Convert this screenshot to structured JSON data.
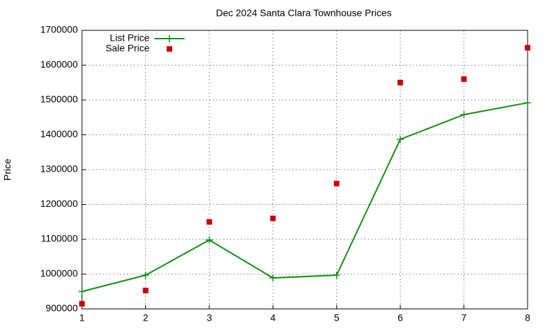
{
  "chart_data": {
    "type": "line",
    "title": "Dec 2024 Santa Clara Townhouse Prices",
    "y_label": "Price",
    "x": [
      1,
      2,
      3,
      4,
      5,
      6,
      7,
      8
    ],
    "xlim": [
      1,
      8
    ],
    "xticks": [
      1,
      2,
      3,
      4,
      5,
      6,
      7,
      8
    ],
    "ylim": [
      900000,
      1700000
    ],
    "yticks": [
      900000,
      1000000,
      1100000,
      1200000,
      1300000,
      1400000,
      1500000,
      1600000,
      1700000
    ],
    "grid": true,
    "legend": "top-left",
    "series": [
      {
        "name": "List Price",
        "color": "#109010",
        "style": "line",
        "values": [
          950000,
          997000,
          1098000,
          989000,
          997000,
          1387000,
          1458000,
          1492000
        ]
      },
      {
        "name": "Sale Price",
        "color": "#cc0000",
        "style": "points",
        "values": [
          915000,
          953000,
          1150000,
          1160000,
          1260000,
          1550000,
          1560000,
          1650000
        ]
      }
    ]
  }
}
